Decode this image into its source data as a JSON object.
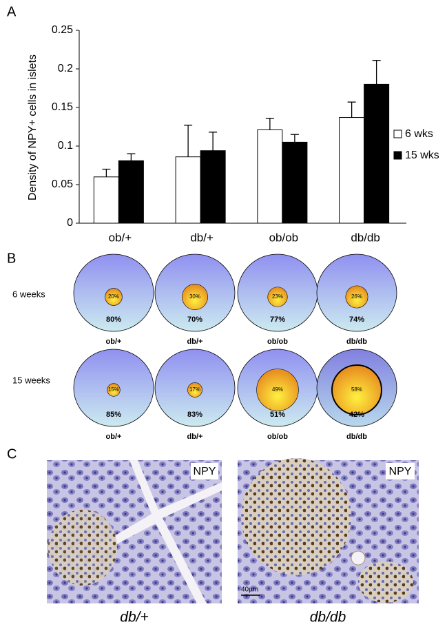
{
  "panels": [
    "A",
    "B",
    "C"
  ],
  "chart_data": [
    {
      "type": "bar",
      "ylabel": "Density of NPY+ cells in islets",
      "categories": [
        "ob/+",
        "db/+",
        "ob/ob",
        "db/db"
      ],
      "series": [
        {
          "name": "6 wks",
          "color": "#ffffff",
          "values": [
            0.06,
            0.086,
            0.121,
            0.137
          ],
          "errors": [
            0.01,
            0.041,
            0.015,
            0.02
          ]
        },
        {
          "name": "15 wks",
          "color": "#000000",
          "values": [
            0.081,
            0.094,
            0.105,
            0.18
          ],
          "errors": [
            0.009,
            0.024,
            0.01,
            0.031
          ]
        }
      ],
      "ylim": [
        0,
        0.25
      ],
      "yticks": [
        0,
        0.05,
        0.1,
        0.15,
        0.2,
        0.25
      ],
      "legend": "right"
    },
    {
      "type": "nested-circle",
      "rows": [
        {
          "label": "6 weeks",
          "categories": [
            "ob/+",
            "db/+",
            "ob/ob",
            "db/db"
          ],
          "inner": [
            20,
            30,
            23,
            26
          ],
          "inner_labels": [
            "20%",
            "30%",
            "23%",
            "26%"
          ],
          "outer": [
            80,
            70,
            77,
            74
          ],
          "outer_labels": [
            "80%",
            "70%",
            "77%",
            "74%"
          ]
        },
        {
          "label": "15 weeks",
          "categories": [
            "ob/+",
            "db/+",
            "ob/ob",
            "db/db"
          ],
          "inner": [
            15,
            17,
            49,
            58
          ],
          "inner_labels": [
            "15%",
            "17%",
            "49%",
            "58%"
          ],
          "outer": [
            85,
            83,
            51,
            42
          ],
          "outer_labels": [
            "85%",
            "83%",
            "51%",
            "42%"
          ]
        }
      ]
    }
  ],
  "micrographs": {
    "stain_labels": [
      "NPY",
      "NPY"
    ],
    "scale_bar": "40µm",
    "captions": [
      "db/+",
      "db/db"
    ]
  }
}
